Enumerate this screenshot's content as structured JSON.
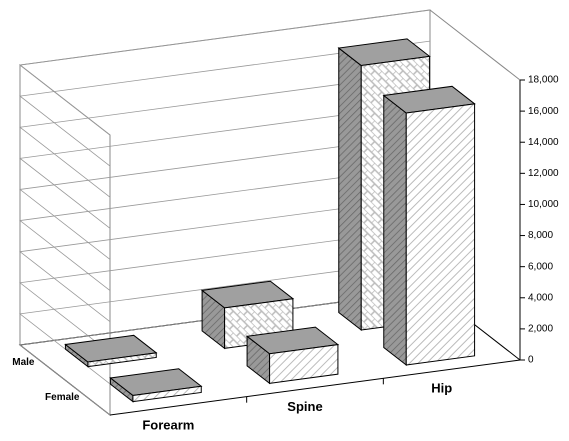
{
  "chart_data": {
    "type": "bar3d",
    "categories": [
      "Forearm",
      "Spine",
      "Hip"
    ],
    "series": [
      {
        "name": "Male",
        "color": "#a0a0a0",
        "values": [
          300,
          2600,
          17000
        ]
      },
      {
        "name": "Female",
        "color": "#a0a0a0",
        "values": [
          400,
          1900,
          16200
        ]
      }
    ],
    "ylim": [
      0,
      18000
    ],
    "yticks": [
      0,
      {
        "value": 2000,
        "label": "2,000"
      },
      {
        "value": 4000,
        "label": "4,000"
      },
      {
        "value": 6000,
        "label": "6,000"
      },
      {
        "value": 8000,
        "label": "8,000"
      },
      {
        "value": 10000,
        "label": "10,000"
      },
      {
        "value": 12000,
        "label": "12,000"
      },
      {
        "value": 14000,
        "label": "14,000"
      },
      {
        "value": 16000,
        "label": "16,000"
      },
      {
        "value": 18000,
        "label": "18,000"
      }
    ],
    "grid": true
  }
}
